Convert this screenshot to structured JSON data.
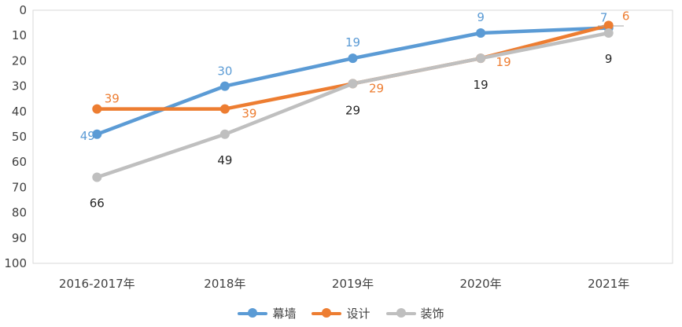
{
  "chart_data": {
    "type": "line",
    "categories": [
      "2016-2017年",
      "2018年",
      "2019年",
      "2020年",
      "2021年"
    ],
    "ylim": [
      0,
      100
    ],
    "y_inverted": true,
    "y_ticks": [
      0,
      10,
      20,
      30,
      40,
      50,
      60,
      70,
      80,
      90,
      100
    ],
    "grid": false,
    "legend_position": "bottom",
    "series": [
      {
        "name": "幕墙",
        "color": "#5B9BD5",
        "values": [
          49,
          30,
          19,
          9,
          7
        ],
        "labels": [
          "49",
          "30",
          "19",
          "9",
          "7"
        ]
      },
      {
        "name": "设计",
        "color": "#ED7D31",
        "values": [
          39,
          39,
          29,
          19,
          6
        ],
        "labels": [
          "39",
          "39",
          "29",
          "19",
          "6"
        ]
      },
      {
        "name": "装饰",
        "color": "#BFBFBF",
        "label_color": "#262626",
        "values": [
          66,
          49,
          29,
          19,
          9
        ],
        "labels": [
          "66",
          "49",
          "29",
          "19",
          "9"
        ]
      }
    ]
  }
}
